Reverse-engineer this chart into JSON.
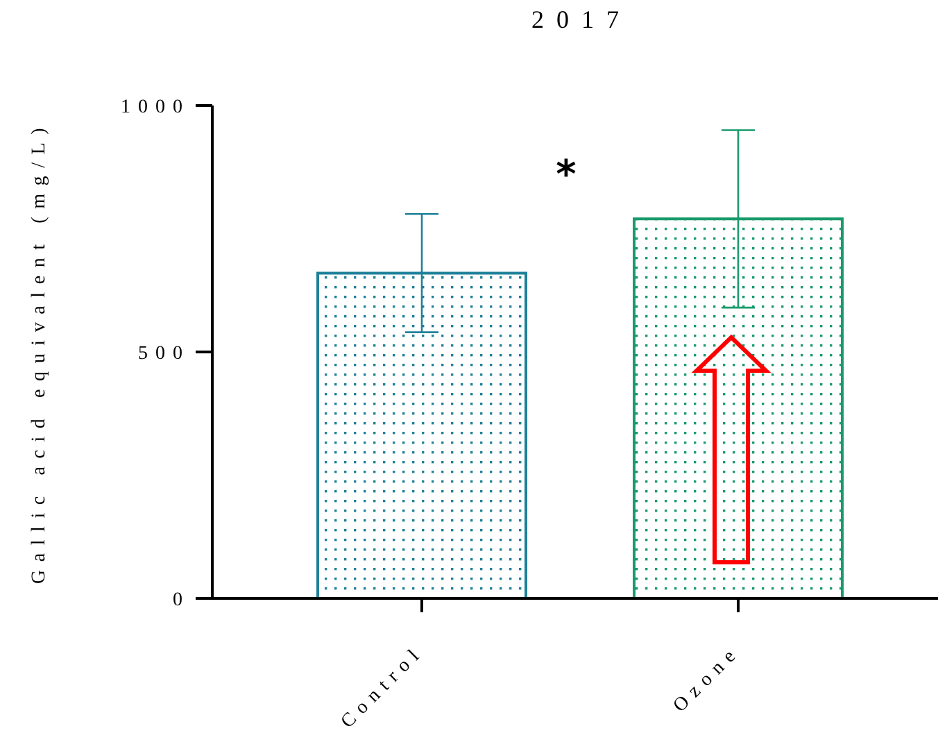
{
  "chart_data": {
    "type": "bar",
    "title": "2017",
    "ylabel": "Gallic acid equivalent (mg/L)",
    "categories": [
      "Control",
      "Ozone"
    ],
    "values": [
      660,
      770
    ],
    "errors": [
      120,
      180
    ],
    "colors": [
      "#1f8199",
      "#1a9a6c"
    ],
    "ylim": [
      0,
      1000
    ],
    "yticks": [
      0,
      500,
      1000
    ],
    "annotations": [
      "*"
    ]
  }
}
